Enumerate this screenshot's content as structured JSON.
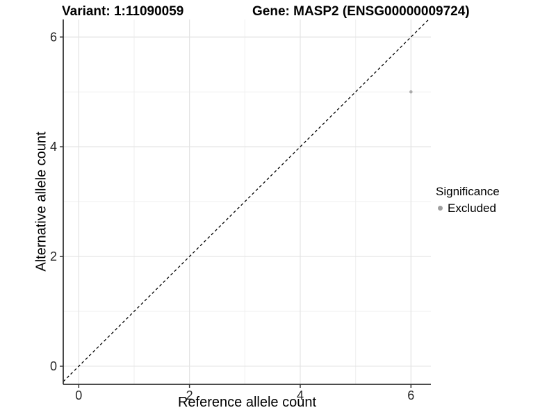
{
  "titles": {
    "variant": "Variant: 1:11090059",
    "gene": "Gene: MASP2 (ENSG00000009724)"
  },
  "legend": {
    "title": "Significance",
    "items": [
      {
        "label": "Excluded",
        "color": "#9f9f9f"
      }
    ]
  },
  "chart_data": {
    "type": "scatter",
    "title": "",
    "xlabel": "Reference allele count",
    "ylabel": "Alternative allele count",
    "xlim": [
      -0.28,
      6.36
    ],
    "ylim": [
      -0.33,
      6.32
    ],
    "x_ticks": [
      0,
      2,
      4,
      6
    ],
    "y_ticks": [
      0,
      2,
      4,
      6
    ],
    "x_minor_ticks": [
      1,
      3,
      5
    ],
    "y_minor_ticks": [
      1,
      3,
      5
    ],
    "grid": true,
    "legend_position": "right",
    "series": [
      {
        "name": "Excluded",
        "color": "#acacac",
        "points": [
          {
            "x": 6,
            "y": 5
          }
        ]
      }
    ],
    "reference_line": {
      "slope": 1,
      "intercept": 0,
      "style": "dashed",
      "color": "#000000"
    }
  },
  "colors": {
    "axis_line": "#333333",
    "tick_label": "#262626",
    "grid_major": "#e3e3e3",
    "grid_minor": "#efefef"
  }
}
